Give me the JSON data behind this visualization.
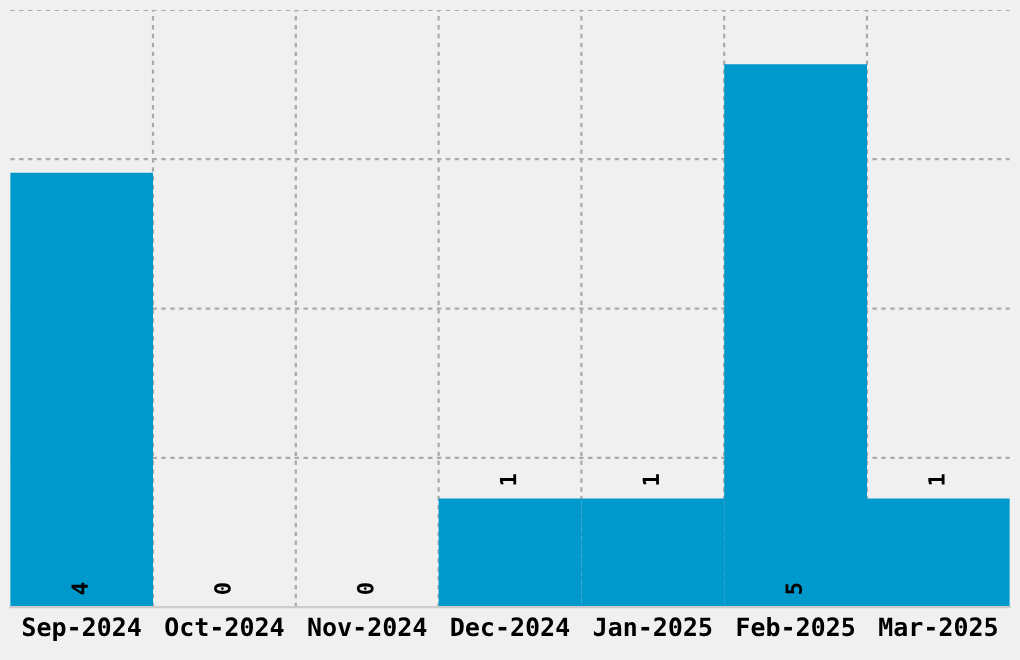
{
  "chart_data": {
    "type": "bar",
    "categories": [
      "Sep-2024",
      "Oct-2024",
      "Nov-2024",
      "Dec-2024",
      "Jan-2025",
      "Feb-2025",
      "Mar-2025"
    ],
    "values": [
      4,
      0,
      0,
      1,
      1,
      5,
      1
    ],
    "color": "#0099cc",
    "data_labels": true,
    "ylim": [
      0,
      5.5
    ],
    "yticks": [
      {
        "value": 0,
        "label": null
      },
      {
        "value": 1.375,
        "label": null
      },
      {
        "value": 2.75,
        "label": null
      },
      {
        "value": 4.125,
        "label": null
      },
      {
        "value": 5.5,
        "label": null
      }
    ],
    "tick_labels": "x",
    "grid": true
  }
}
